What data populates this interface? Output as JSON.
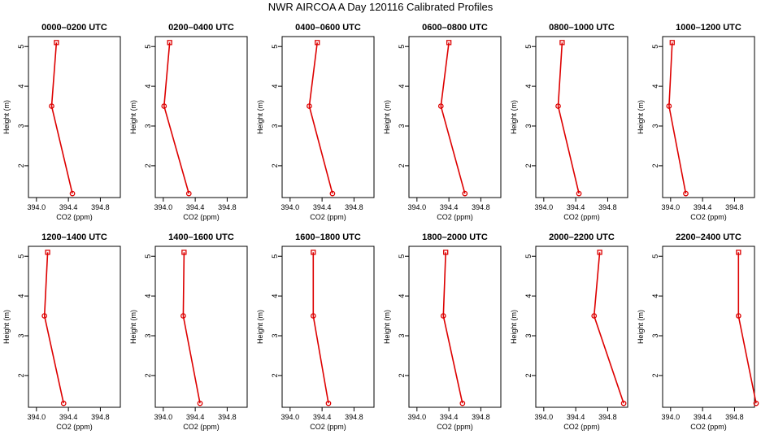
{
  "title": "NWR AIRCOA A  Day 120116  Calibrated Profiles",
  "colors": {
    "series": "#dd0000",
    "axis": "#000000"
  },
  "chart_data": [
    {
      "type": "line",
      "title": "0000–0200 UTC",
      "xlabel": "CO2 (ppm)",
      "ylabel": "Height (m)",
      "xlim": [
        393.9,
        395.05
      ],
      "ylim": [
        1.2,
        5.25
      ],
      "xticks": [
        394.0,
        394.4,
        394.8
      ],
      "yticks": [
        2,
        3,
        4,
        5
      ],
      "x": [
        394.25,
        394.19,
        394.45
      ],
      "y": [
        5.1,
        3.5,
        1.3
      ]
    },
    {
      "type": "line",
      "title": "0200–0400 UTC",
      "xlabel": "CO2 (ppm)",
      "ylabel": "Height (m)",
      "xlim": [
        393.9,
        395.05
      ],
      "ylim": [
        1.2,
        5.25
      ],
      "xticks": [
        394.0,
        394.4,
        394.8
      ],
      "yticks": [
        2,
        3,
        4,
        5
      ],
      "x": [
        394.08,
        394.01,
        394.32
      ],
      "y": [
        5.1,
        3.5,
        1.3
      ]
    },
    {
      "type": "line",
      "title": "0400–0600 UTC",
      "xlabel": "CO2 (ppm)",
      "ylabel": "Height (m)",
      "xlim": [
        393.9,
        395.05
      ],
      "ylim": [
        1.2,
        5.25
      ],
      "xticks": [
        394.0,
        394.4,
        394.8
      ],
      "yticks": [
        2,
        3,
        4,
        5
      ],
      "x": [
        394.34,
        394.24,
        394.53
      ],
      "y": [
        5.1,
        3.5,
        1.3
      ]
    },
    {
      "type": "line",
      "title": "0600–0800 UTC",
      "xlabel": "CO2 (ppm)",
      "ylabel": "Height (m)",
      "xlim": [
        393.9,
        395.05
      ],
      "ylim": [
        1.2,
        5.25
      ],
      "xticks": [
        394.0,
        394.4,
        394.8
      ],
      "yticks": [
        2,
        3,
        4,
        5
      ],
      "x": [
        394.4,
        394.3,
        394.6
      ],
      "y": [
        5.1,
        3.5,
        1.3
      ]
    },
    {
      "type": "line",
      "title": "0800–1000 UTC",
      "xlabel": "CO2 (ppm)",
      "ylabel": "Height (m)",
      "xlim": [
        393.9,
        395.05
      ],
      "ylim": [
        1.2,
        5.25
      ],
      "xticks": [
        394.0,
        394.4,
        394.8
      ],
      "yticks": [
        2,
        3,
        4,
        5
      ],
      "x": [
        394.23,
        394.18,
        394.44
      ],
      "y": [
        5.1,
        3.5,
        1.3
      ]
    },
    {
      "type": "line",
      "title": "1000–1200 UTC",
      "xlabel": "CO2 (ppm)",
      "ylabel": "Height (m)",
      "xlim": [
        393.9,
        395.05
      ],
      "ylim": [
        1.2,
        5.25
      ],
      "xticks": [
        394.0,
        394.4,
        394.8
      ],
      "yticks": [
        2,
        3,
        4,
        5
      ],
      "x": [
        394.02,
        393.98,
        394.19
      ],
      "y": [
        5.1,
        3.5,
        1.3
      ]
    },
    {
      "type": "line",
      "title": "1200–1400 UTC",
      "xlabel": "CO2 (ppm)",
      "ylabel": "Height (m)",
      "xlim": [
        393.9,
        395.05
      ],
      "ylim": [
        1.2,
        5.25
      ],
      "xticks": [
        394.0,
        394.4,
        394.8
      ],
      "yticks": [
        2,
        3,
        4,
        5
      ],
      "x": [
        394.14,
        394.1,
        394.34
      ],
      "y": [
        5.1,
        3.5,
        1.3
      ]
    },
    {
      "type": "line",
      "title": "1400–1600 UTC",
      "xlabel": "CO2 (ppm)",
      "ylabel": "Height (m)",
      "xlim": [
        393.9,
        395.05
      ],
      "ylim": [
        1.2,
        5.25
      ],
      "xticks": [
        394.0,
        394.4,
        394.8
      ],
      "yticks": [
        2,
        3,
        4,
        5
      ],
      "x": [
        394.26,
        394.25,
        394.46
      ],
      "y": [
        5.1,
        3.5,
        1.3
      ]
    },
    {
      "type": "line",
      "title": "1600–1800 UTC",
      "xlabel": "CO2 (ppm)",
      "ylabel": "Height (m)",
      "xlim": [
        393.9,
        395.05
      ],
      "ylim": [
        1.2,
        5.25
      ],
      "xticks": [
        394.0,
        394.4,
        394.8
      ],
      "yticks": [
        2,
        3,
        4,
        5
      ],
      "x": [
        394.29,
        394.29,
        394.48
      ],
      "y": [
        5.1,
        3.5,
        1.3
      ]
    },
    {
      "type": "line",
      "title": "1800–2000 UTC",
      "xlabel": "CO2 (ppm)",
      "ylabel": "Height (m)",
      "xlim": [
        393.9,
        395.05
      ],
      "ylim": [
        1.2,
        5.25
      ],
      "xticks": [
        394.0,
        394.4,
        394.8
      ],
      "yticks": [
        2,
        3,
        4,
        5
      ],
      "x": [
        394.36,
        394.33,
        394.57
      ],
      "y": [
        5.1,
        3.5,
        1.3
      ]
    },
    {
      "type": "line",
      "title": "2000–2200 UTC",
      "xlabel": "CO2 (ppm)",
      "ylabel": "Height (m)",
      "xlim": [
        393.9,
        395.05
      ],
      "ylim": [
        1.2,
        5.25
      ],
      "xticks": [
        394.0,
        394.4,
        394.8
      ],
      "yticks": [
        2,
        3,
        4,
        5
      ],
      "x": [
        394.7,
        394.63,
        395.0
      ],
      "y": [
        5.1,
        3.5,
        1.3
      ]
    },
    {
      "type": "line",
      "title": "2200–2400 UTC",
      "xlabel": "CO2 (ppm)",
      "ylabel": "Height (m)",
      "xlim": [
        393.9,
        395.05
      ],
      "ylim": [
        1.2,
        5.25
      ],
      "xticks": [
        394.0,
        394.4,
        394.8
      ],
      "yticks": [
        2,
        3,
        4,
        5
      ],
      "x": [
        394.85,
        394.85,
        395.07
      ],
      "y": [
        5.1,
        3.5,
        1.3
      ]
    }
  ]
}
